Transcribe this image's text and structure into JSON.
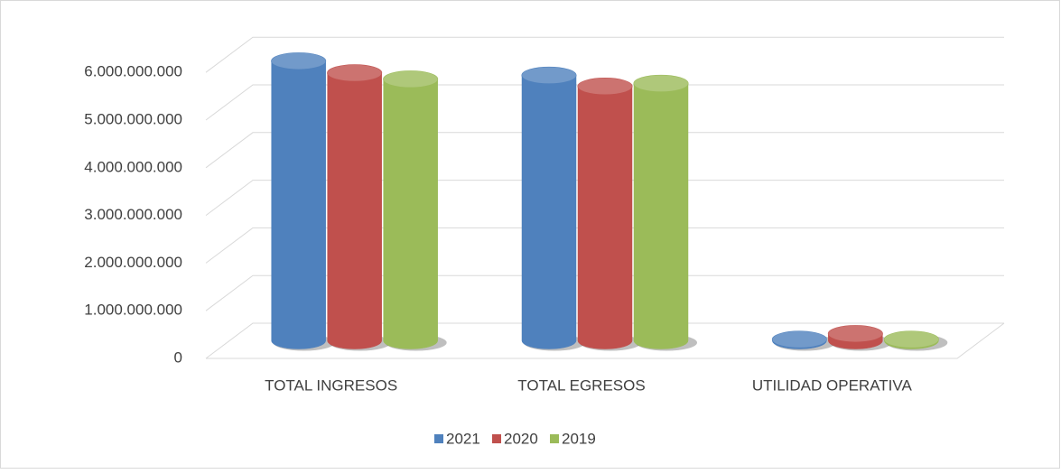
{
  "chart_data": {
    "type": "bar3d",
    "categories": [
      "TOTAL INGRESOS",
      "TOTAL EGRESOS",
      "UTILIDAD OPERATIVA"
    ],
    "series": [
      {
        "name": "2021",
        "color": "#4f81bd",
        "values": [
          5870000000,
          5570000000,
          30000000
        ]
      },
      {
        "name": "2020",
        "color": "#c0504d",
        "values": [
          5620000000,
          5340000000,
          150000000
        ]
      },
      {
        "name": "2019",
        "color": "#9bbb59",
        "values": [
          5490000000,
          5400000000,
          30000000
        ]
      }
    ],
    "ylim": [
      0,
      6000000000
    ],
    "yticks": [
      {
        "value": 0,
        "label": "0"
      },
      {
        "value": 1000000000,
        "label": "1.000.000.000"
      },
      {
        "value": 2000000000,
        "label": "2.000.000.000"
      },
      {
        "value": 3000000000,
        "label": "3.000.000.000"
      },
      {
        "value": 4000000000,
        "label": "4.000.000.000"
      },
      {
        "value": 5000000000,
        "label": "5.000.000.000"
      },
      {
        "value": 6000000000,
        "label": "6.000.000.000"
      }
    ],
    "grid": true,
    "legend": "bottom"
  }
}
